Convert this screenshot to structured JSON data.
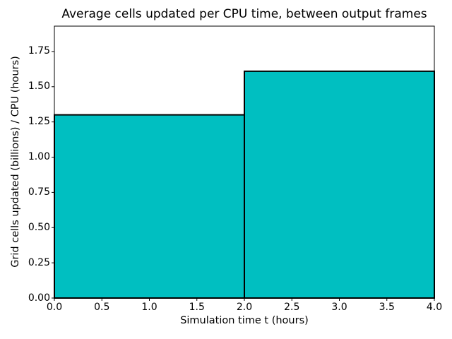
{
  "chart_data": {
    "type": "bar",
    "subtype": "step-histogram",
    "title": "Average cells updated per CPU time, between output frames",
    "xlabel": "Simulation time t (hours)",
    "ylabel": "Grid cells updated (billions) / CPU (hours)",
    "bin_edges": [
      0,
      2,
      4
    ],
    "values": [
      1.3,
      1.61
    ],
    "xlim": [
      0,
      4
    ],
    "ylim": [
      0,
      1.93
    ],
    "xticks": [
      0,
      0.5,
      1.0,
      1.5,
      2.0,
      2.5,
      3.0,
      3.5,
      4.0
    ],
    "xtick_labels": [
      "0.0",
      "0.5",
      "1.0",
      "1.5",
      "2.0",
      "2.5",
      "3.0",
      "3.5",
      "4.0"
    ],
    "yticks": [
      0,
      0.25,
      0.5,
      0.75,
      1.0,
      1.25,
      1.5,
      1.75
    ],
    "ytick_labels": [
      "0.00",
      "0.25",
      "0.50",
      "0.75",
      "1.00",
      "1.25",
      "1.50",
      "1.75"
    ],
    "grid": false,
    "legend": null,
    "colors": {
      "bar_fill": "#00BFC1",
      "bar_edge": "#000000",
      "axes_edge": "#000000",
      "text": "#000000",
      "background": "#ffffff"
    },
    "bar_edge_width": 2
  }
}
